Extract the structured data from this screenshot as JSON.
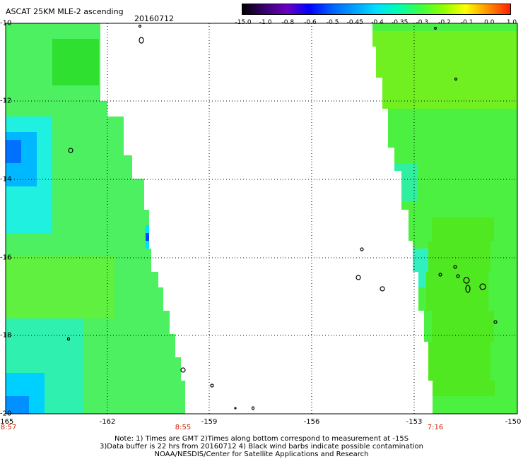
{
  "header": {
    "title": "ASCAT 25KM MLE-2 ascending",
    "date": "20160712"
  },
  "colorbar": {
    "labels": [
      "-15.0",
      "-1.0",
      "-0.8",
      "-0.6",
      "-0.5",
      "-0.45",
      "-0.4",
      "-0.35",
      "-0.3",
      "-0.2",
      "-0.1",
      "0.0",
      "1.0"
    ],
    "colors": [
      "#000000",
      "#3a0070",
      "#6a00c0",
      "#0000ff",
      "#0060ff",
      "#00a0ff",
      "#00e0ff",
      "#00ffb0",
      "#40ff40",
      "#90ff00",
      "#ffff00",
      "#ff9000",
      "#ff2000"
    ]
  },
  "axes": {
    "x_labels": [
      "-165",
      "-162",
      "-159",
      "-156",
      "-153",
      "-150"
    ],
    "y_labels": [
      "-10",
      "-12",
      "-14",
      "-16",
      "-18",
      "-20"
    ]
  },
  "swath_times": {
    "left_start": "8:57",
    "left_end": "8:55",
    "right_start": "7:16"
  },
  "notes": {
    "line1": "Note: 1) Times are GMT 2)Times along bottom correspond to measurement at -15S",
    "line2": "3)Data buffer is 22 hrs from 20160712 4) Black wind barbs indicate possible contamination",
    "line3": "NOAA/NESDIS/Center for Satellite Applications and Research"
  },
  "colors": {
    "field_green": "#5ef030",
    "field_cyan": "#00ffe0",
    "field_blue": "#0040ff"
  }
}
